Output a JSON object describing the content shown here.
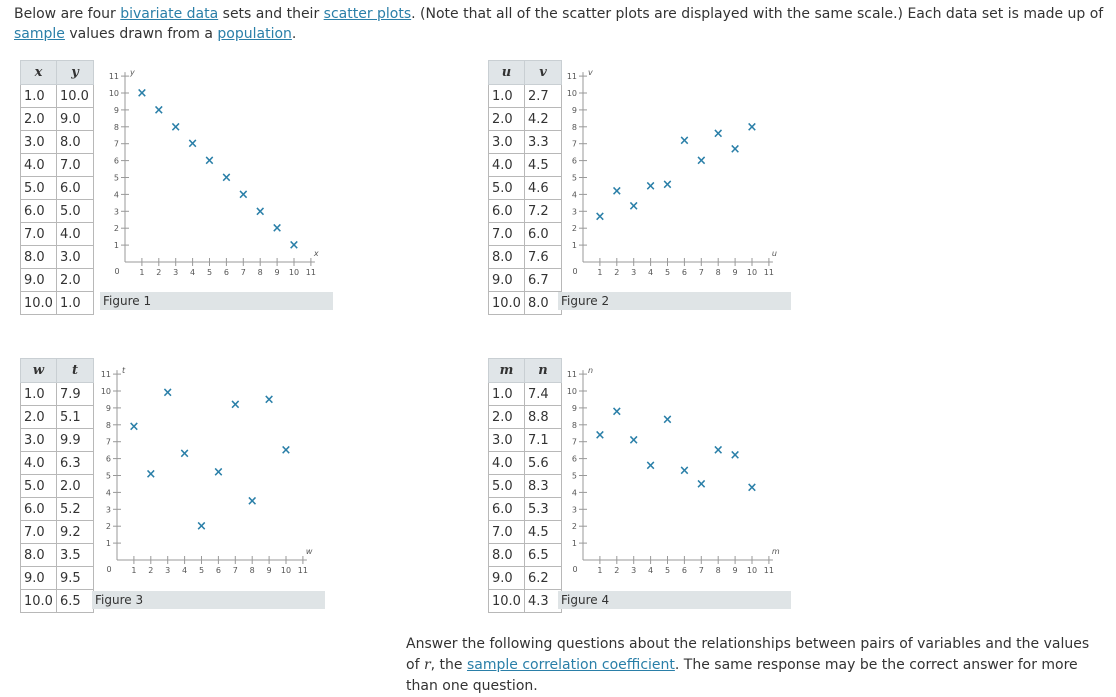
{
  "intro": {
    "t1": "Below are four ",
    "link1": "bivariate data",
    "t2": " sets and their ",
    "link2": "scatter plots",
    "t3": ". (Note that all of the scatter plots are displayed with the same scale.) Each data set is made up of ",
    "link3": "sample",
    "t4": " values drawn from a ",
    "link4": "population",
    "t5": "."
  },
  "question": {
    "t1": "Answer the following questions about the relationships between pairs of variables and the values of ",
    "var": "r",
    "t2": ", the ",
    "link": "sample correlation coefficient",
    "t3": ". The same response may be the correct answer for more than one question."
  },
  "marker": "×",
  "colors": {
    "accent": "#2a7fa8",
    "marker": "#2a7fa8",
    "header_bg": "#e0e5e8",
    "label_bg": "#dfe4e6"
  },
  "chart_data": [
    {
      "type": "scatter",
      "figure_label": "Figure 1",
      "xlabel": "x",
      "ylabel": "y",
      "xlim": [
        0,
        11
      ],
      "ylim": [
        0,
        11
      ],
      "x_ticks": [
        "1",
        "2",
        "3",
        "4",
        "5",
        "6",
        "7",
        "8",
        "9",
        "10",
        "11"
      ],
      "y_ticks": [
        "1",
        "2",
        "3",
        "4",
        "5",
        "6",
        "7",
        "8",
        "9",
        "10",
        "11"
      ],
      "origin_label": "0",
      "x": [
        "1.0",
        "2.0",
        "3.0",
        "4.0",
        "5.0",
        "6.0",
        "7.0",
        "8.0",
        "9.0",
        "10.0"
      ],
      "y": [
        "10.0",
        "9.0",
        "8.0",
        "7.0",
        "6.0",
        "5.0",
        "4.0",
        "3.0",
        "2.0",
        "1.0"
      ]
    },
    {
      "type": "scatter",
      "figure_label": "Figure 2",
      "xlabel": "u",
      "ylabel": "v",
      "xlim": [
        0,
        11
      ],
      "ylim": [
        0,
        11
      ],
      "x_ticks": [
        "1",
        "2",
        "3",
        "4",
        "5",
        "6",
        "7",
        "8",
        "9",
        "10",
        "11"
      ],
      "y_ticks": [
        "1",
        "2",
        "3",
        "4",
        "5",
        "6",
        "7",
        "8",
        "9",
        "10",
        "11"
      ],
      "origin_label": "0",
      "x": [
        "1.0",
        "2.0",
        "3.0",
        "4.0",
        "5.0",
        "6.0",
        "7.0",
        "8.0",
        "9.0",
        "10.0"
      ],
      "y": [
        "2.7",
        "4.2",
        "3.3",
        "4.5",
        "4.6",
        "7.2",
        "6.0",
        "7.6",
        "6.7",
        "8.0"
      ]
    },
    {
      "type": "scatter",
      "figure_label": "Figure 3",
      "xlabel": "w",
      "ylabel": "t",
      "xlim": [
        0,
        11
      ],
      "ylim": [
        0,
        11
      ],
      "x_ticks": [
        "1",
        "2",
        "3",
        "4",
        "5",
        "6",
        "7",
        "8",
        "9",
        "10",
        "11"
      ],
      "y_ticks": [
        "1",
        "2",
        "3",
        "4",
        "5",
        "6",
        "7",
        "8",
        "9",
        "10",
        "11"
      ],
      "origin_label": "0",
      "x": [
        "1.0",
        "2.0",
        "3.0",
        "4.0",
        "5.0",
        "6.0",
        "7.0",
        "8.0",
        "9.0",
        "10.0"
      ],
      "y": [
        "7.9",
        "5.1",
        "9.9",
        "6.3",
        "2.0",
        "5.2",
        "9.2",
        "3.5",
        "9.5",
        "6.5"
      ]
    },
    {
      "type": "scatter",
      "figure_label": "Figure 4",
      "xlabel": "m",
      "ylabel": "n",
      "xlim": [
        0,
        11
      ],
      "ylim": [
        0,
        11
      ],
      "x_ticks": [
        "1",
        "2",
        "3",
        "4",
        "5",
        "6",
        "7",
        "8",
        "9",
        "10",
        "11"
      ],
      "y_ticks": [
        "1",
        "2",
        "3",
        "4",
        "5",
        "6",
        "7",
        "8",
        "9",
        "10",
        "11"
      ],
      "origin_label": "0",
      "x": [
        "1.0",
        "2.0",
        "3.0",
        "4.0",
        "5.0",
        "6.0",
        "7.0",
        "8.0",
        "9.0",
        "10.0"
      ],
      "y": [
        "7.4",
        "8.8",
        "7.1",
        "5.6",
        "8.3",
        "5.3",
        "4.5",
        "6.5",
        "6.2",
        "4.3"
      ]
    }
  ]
}
